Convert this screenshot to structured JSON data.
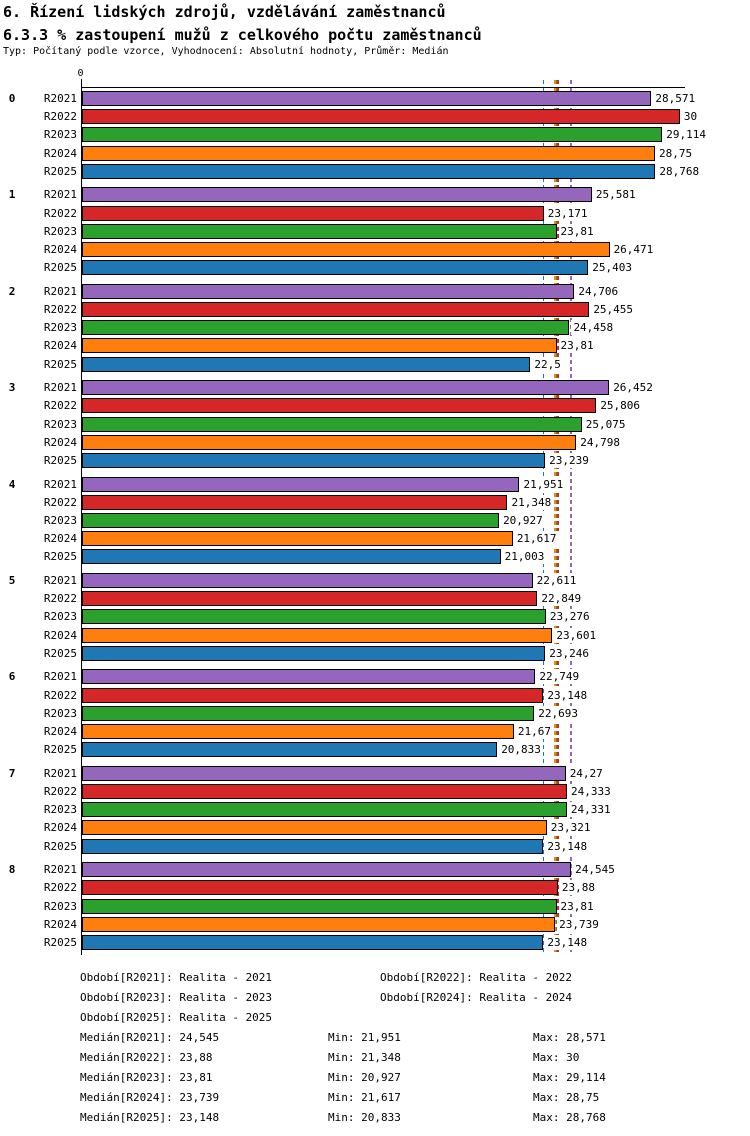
{
  "header": {
    "title_line1": "6. Řízení lidských zdrojů, vzdělávání zaměstnanců",
    "title_line2": "6.3.3 % zastoupení mužů z celkového počtu zaměstnanců",
    "subtitle": "Typ: Počítaný podle vzorce, Vyhodnocení: Absolutní hodnoty, Průměr: Medián"
  },
  "chart_data": {
    "type": "bar",
    "orientation": "horizontal",
    "title": "6.3.3 % zastoupení mužů z celkového počtu zaměstnanců",
    "axis": {
      "zero_label": "0",
      "xlim": [
        0,
        30.25
      ],
      "grid": false
    },
    "series_order": [
      "R2021",
      "R2022",
      "R2023",
      "R2024",
      "R2025"
    ],
    "series_colors": {
      "R2021": "#9467bd",
      "R2022": "#d62728",
      "R2023": "#2ca02c",
      "R2024": "#ff7f0e",
      "R2025": "#1f77b4"
    },
    "groups": [
      {
        "label": "0",
        "values": [
          28.571,
          30,
          29.114,
          28.75,
          28.768
        ],
        "value_labels": [
          "28,571",
          "30",
          "29,114",
          "28,75",
          "28,768"
        ]
      },
      {
        "label": "1",
        "values": [
          25.581,
          23.171,
          23.81,
          26.471,
          25.403
        ],
        "value_labels": [
          "25,581",
          "23,171",
          "23,81",
          "26,471",
          "25,403"
        ]
      },
      {
        "label": "2",
        "values": [
          24.706,
          25.455,
          24.458,
          23.81,
          22.5
        ],
        "value_labels": [
          "24,706",
          "25,455",
          "24,458",
          "23,81",
          "22,5"
        ]
      },
      {
        "label": "3",
        "values": [
          26.452,
          25.806,
          25.075,
          24.798,
          23.239
        ],
        "value_labels": [
          "26,452",
          "25,806",
          "25,075",
          "24,798",
          "23,239"
        ]
      },
      {
        "label": "4",
        "values": [
          21.951,
          21.348,
          20.927,
          21.617,
          21.003
        ],
        "value_labels": [
          "21,951",
          "21,348",
          "20,927",
          "21,617",
          "21,003"
        ]
      },
      {
        "label": "5",
        "values": [
          22.611,
          22.849,
          23.276,
          23.601,
          23.246
        ],
        "value_labels": [
          "22,611",
          "22,849",
          "23,276",
          "23,601",
          "23,246"
        ]
      },
      {
        "label": "6",
        "values": [
          22.749,
          23.148,
          22.693,
          21.67,
          20.833
        ],
        "value_labels": [
          "22,749",
          "23,148",
          "22,693",
          "21,67",
          "20,833"
        ]
      },
      {
        "label": "7",
        "values": [
          24.27,
          24.333,
          24.331,
          23.321,
          23.148
        ],
        "value_labels": [
          "24,27",
          "24,333",
          "24,331",
          "23,321",
          "23,148"
        ]
      },
      {
        "label": "8",
        "values": [
          24.545,
          23.88,
          23.81,
          23.739,
          23.148
        ],
        "value_labels": [
          "24,545",
          "23,88",
          "23,81",
          "23,739",
          "23,148"
        ]
      }
    ],
    "medians": [
      {
        "series": "R2021",
        "value": 24.545
      },
      {
        "series": "R2022",
        "value": 23.88
      },
      {
        "series": "R2023",
        "value": 23.81
      },
      {
        "series": "R2024",
        "value": 23.739
      },
      {
        "series": "R2025",
        "value": 23.148
      }
    ]
  },
  "legend": {
    "period_rows": [
      [
        {
          "id": "R2021",
          "text": "Období[R2021]: Realita - 2021"
        },
        {
          "id": "R2022",
          "text": "Období[R2022]: Realita - 2022"
        }
      ],
      [
        {
          "id": "R2023",
          "text": "Období[R2023]: Realita - 2023"
        },
        {
          "id": "R2024",
          "text": "Období[R2024]: Realita - 2024"
        }
      ],
      [
        {
          "id": "R2025",
          "text": "Období[R2025]: Realita - 2025"
        }
      ]
    ],
    "stats_rows": [
      {
        "id": "R2021",
        "median": "Medián[R2021]: 24,545",
        "min": "Min: 21,951",
        "max": "Max: 28,571"
      },
      {
        "id": "R2022",
        "median": "Medián[R2022]: 23,88",
        "min": "Min: 21,348",
        "max": "Max: 30"
      },
      {
        "id": "R2023",
        "median": "Medián[R2023]: 23,81",
        "min": "Min: 20,927",
        "max": "Max: 29,114"
      },
      {
        "id": "R2024",
        "median": "Medián[R2024]: 23,739",
        "min": "Min: 21,617",
        "max": "Max: 28,75"
      },
      {
        "id": "R2025",
        "median": "Medián[R2025]: 23,148",
        "min": "Min: 20,833",
        "max": "Max: 28,768"
      }
    ]
  }
}
